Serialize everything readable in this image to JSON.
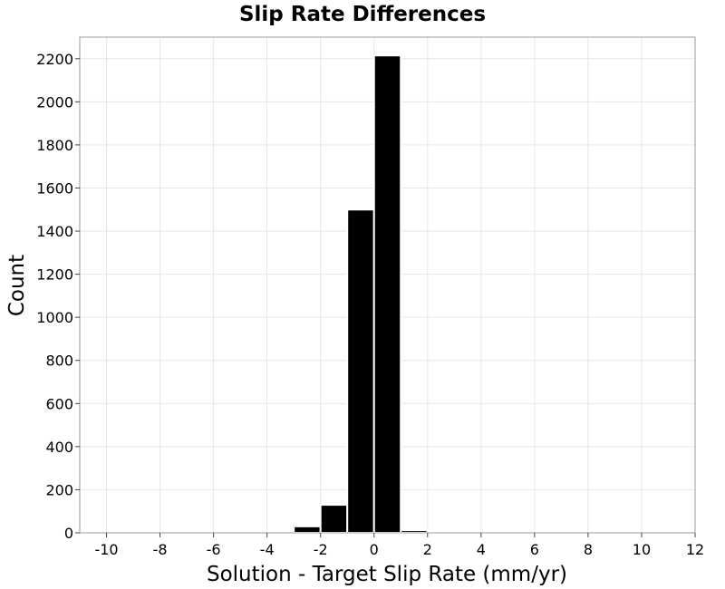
{
  "chart_data": {
    "type": "bar",
    "title": "Slip Rate Differences",
    "xlabel": "Solution - Target Slip Rate (mm/yr)",
    "ylabel": "Count",
    "xlim": [
      -11,
      12
    ],
    "ylim": [
      0,
      2300
    ],
    "xticks": [
      -10,
      -8,
      -6,
      -4,
      -2,
      0,
      2,
      4,
      6,
      8,
      10,
      12
    ],
    "yticks": [
      0,
      200,
      400,
      600,
      800,
      1000,
      1200,
      1400,
      1600,
      1800,
      2000,
      2200
    ],
    "bin_width": 1,
    "bins": [
      {
        "start": -4,
        "value": 5
      },
      {
        "start": -3,
        "value": 30
      },
      {
        "start": -2,
        "value": 130
      },
      {
        "start": -1,
        "value": 1500
      },
      {
        "start": 0,
        "value": 2215
      },
      {
        "start": 1,
        "value": 12
      },
      {
        "start": 2,
        "value": 3
      }
    ],
    "grid": true,
    "color": "#000000"
  }
}
